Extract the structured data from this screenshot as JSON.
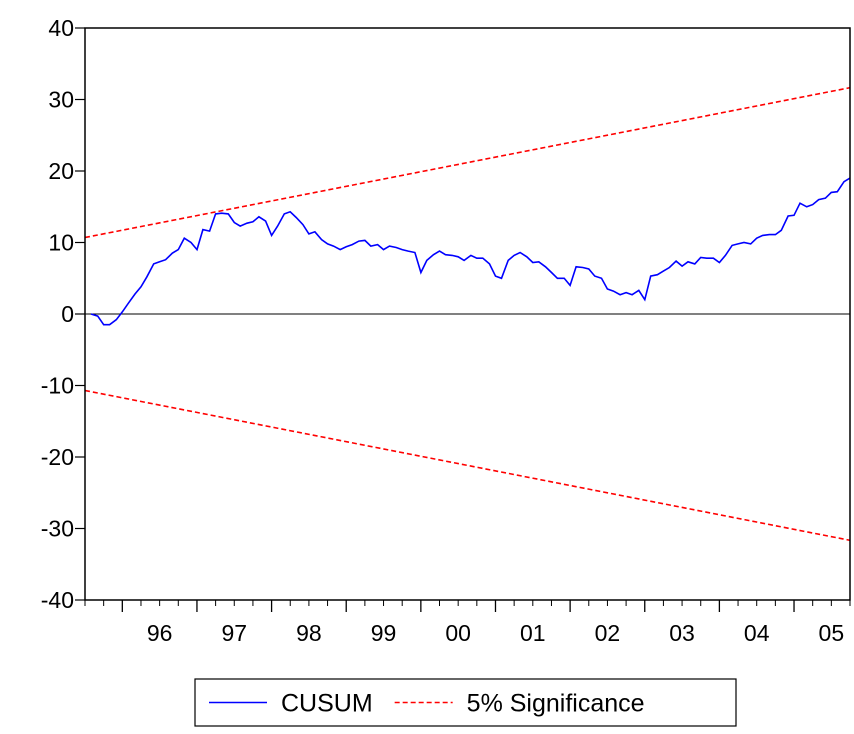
{
  "chart_data": {
    "type": "line",
    "title": "",
    "xlabel": "",
    "ylabel": "",
    "ylim": [
      -40,
      40
    ],
    "y_ticks": [
      "-40",
      "-30",
      "-20",
      "-10",
      "0",
      "10",
      "20",
      "30",
      "40"
    ],
    "x_range": [
      1995.5,
      2005.75
    ],
    "x_tick_labels": [
      "96",
      "97",
      "98",
      "99",
      "00",
      "01",
      "02",
      "03",
      "04",
      "05"
    ],
    "grid": false,
    "zero_line": true,
    "legend_position": "bottom-center",
    "series": [
      {
        "name": "CUSUM",
        "color": "#0000ff",
        "style": "solid",
        "points": [
          [
            1995.58,
            0.0
          ],
          [
            1995.67,
            -0.3
          ],
          [
            1995.75,
            -1.5
          ],
          [
            1995.83,
            -1.5
          ],
          [
            1995.92,
            -0.8
          ],
          [
            1996.0,
            0.3
          ],
          [
            1996.08,
            1.5
          ],
          [
            1996.17,
            2.8
          ],
          [
            1996.25,
            3.8
          ],
          [
            1996.33,
            5.2
          ],
          [
            1996.42,
            7.0
          ],
          [
            1996.5,
            7.3
          ],
          [
            1996.58,
            7.6
          ],
          [
            1996.67,
            8.5
          ],
          [
            1996.75,
            9.0
          ],
          [
            1996.83,
            10.6
          ],
          [
            1996.92,
            10.0
          ],
          [
            1997.0,
            9.0
          ],
          [
            1997.08,
            11.8
          ],
          [
            1997.17,
            11.6
          ],
          [
            1997.25,
            14.0
          ],
          [
            1997.33,
            14.1
          ],
          [
            1997.42,
            14.0
          ],
          [
            1997.5,
            12.8
          ],
          [
            1997.58,
            12.3
          ],
          [
            1997.67,
            12.7
          ],
          [
            1997.75,
            12.9
          ],
          [
            1997.83,
            13.6
          ],
          [
            1997.92,
            13.0
          ],
          [
            1998.0,
            11.0
          ],
          [
            1998.08,
            12.3
          ],
          [
            1998.17,
            14.0
          ],
          [
            1998.25,
            14.3
          ],
          [
            1998.33,
            13.5
          ],
          [
            1998.42,
            12.5
          ],
          [
            1998.5,
            11.2
          ],
          [
            1998.58,
            11.5
          ],
          [
            1998.67,
            10.4
          ],
          [
            1998.75,
            9.8
          ],
          [
            1998.83,
            9.5
          ],
          [
            1998.92,
            9.0
          ],
          [
            1999.0,
            9.4
          ],
          [
            1999.08,
            9.7
          ],
          [
            1999.17,
            10.2
          ],
          [
            1999.25,
            10.3
          ],
          [
            1999.33,
            9.5
          ],
          [
            1999.42,
            9.7
          ],
          [
            1999.5,
            9.0
          ],
          [
            1999.58,
            9.5
          ],
          [
            1999.67,
            9.3
          ],
          [
            1999.75,
            9.0
          ],
          [
            1999.83,
            8.8
          ],
          [
            1999.92,
            8.6
          ],
          [
            2000.0,
            5.8
          ],
          [
            2000.08,
            7.5
          ],
          [
            2000.17,
            8.3
          ],
          [
            2000.25,
            8.8
          ],
          [
            2000.33,
            8.3
          ],
          [
            2000.42,
            8.2
          ],
          [
            2000.5,
            8.0
          ],
          [
            2000.58,
            7.5
          ],
          [
            2000.67,
            8.2
          ],
          [
            2000.75,
            7.8
          ],
          [
            2000.83,
            7.8
          ],
          [
            2000.92,
            7.0
          ],
          [
            2001.0,
            5.3
          ],
          [
            2001.08,
            5.0
          ],
          [
            2001.17,
            7.5
          ],
          [
            2001.25,
            8.2
          ],
          [
            2001.33,
            8.6
          ],
          [
            2001.42,
            8.0
          ],
          [
            2001.5,
            7.2
          ],
          [
            2001.58,
            7.3
          ],
          [
            2001.67,
            6.6
          ],
          [
            2001.75,
            5.8
          ],
          [
            2001.83,
            5.0
          ],
          [
            2001.92,
            5.0
          ],
          [
            2002.0,
            4.0
          ],
          [
            2002.08,
            6.6
          ],
          [
            2002.17,
            6.5
          ],
          [
            2002.25,
            6.3
          ],
          [
            2002.33,
            5.3
          ],
          [
            2002.42,
            5.0
          ],
          [
            2002.5,
            3.5
          ],
          [
            2002.58,
            3.2
          ],
          [
            2002.67,
            2.7
          ],
          [
            2002.75,
            3.0
          ],
          [
            2002.83,
            2.7
          ],
          [
            2002.92,
            3.3
          ],
          [
            2003.0,
            2.0
          ],
          [
            2003.08,
            5.3
          ],
          [
            2003.17,
            5.5
          ],
          [
            2003.25,
            6.0
          ],
          [
            2003.33,
            6.5
          ],
          [
            2003.42,
            7.4
          ],
          [
            2003.5,
            6.7
          ],
          [
            2003.58,
            7.3
          ],
          [
            2003.67,
            7.0
          ],
          [
            2003.75,
            7.9
          ],
          [
            2003.83,
            7.8
          ],
          [
            2003.92,
            7.8
          ],
          [
            2004.0,
            7.2
          ],
          [
            2004.08,
            8.2
          ],
          [
            2004.17,
            9.6
          ],
          [
            2004.25,
            9.8
          ],
          [
            2004.33,
            10.0
          ],
          [
            2004.42,
            9.8
          ],
          [
            2004.5,
            10.6
          ],
          [
            2004.58,
            11.0
          ],
          [
            2004.67,
            11.1
          ],
          [
            2004.75,
            11.1
          ],
          [
            2004.83,
            11.7
          ],
          [
            2004.92,
            13.7
          ],
          [
            2005.0,
            13.8
          ],
          [
            2005.08,
            15.5
          ],
          [
            2005.17,
            15.0
          ],
          [
            2005.25,
            15.3
          ],
          [
            2005.33,
            16.0
          ],
          [
            2005.42,
            16.2
          ],
          [
            2005.5,
            17.0
          ],
          [
            2005.58,
            17.1
          ],
          [
            2005.67,
            18.5
          ],
          [
            2005.75,
            19.0
          ],
          [
            2005.83,
            20.5
          ],
          [
            2005.92,
            20.6
          ]
        ]
      },
      {
        "name": "5% Significance",
        "color": "#ff0000",
        "style": "dashed",
        "points": [
          [
            1995.5,
            10.7
          ],
          [
            2005.92,
            32.0
          ]
        ]
      },
      {
        "name": "",
        "color": "#ff0000",
        "style": "dashed",
        "points": [
          [
            1995.5,
            -10.7
          ],
          [
            2005.92,
            -32.0
          ]
        ]
      }
    ]
  }
}
